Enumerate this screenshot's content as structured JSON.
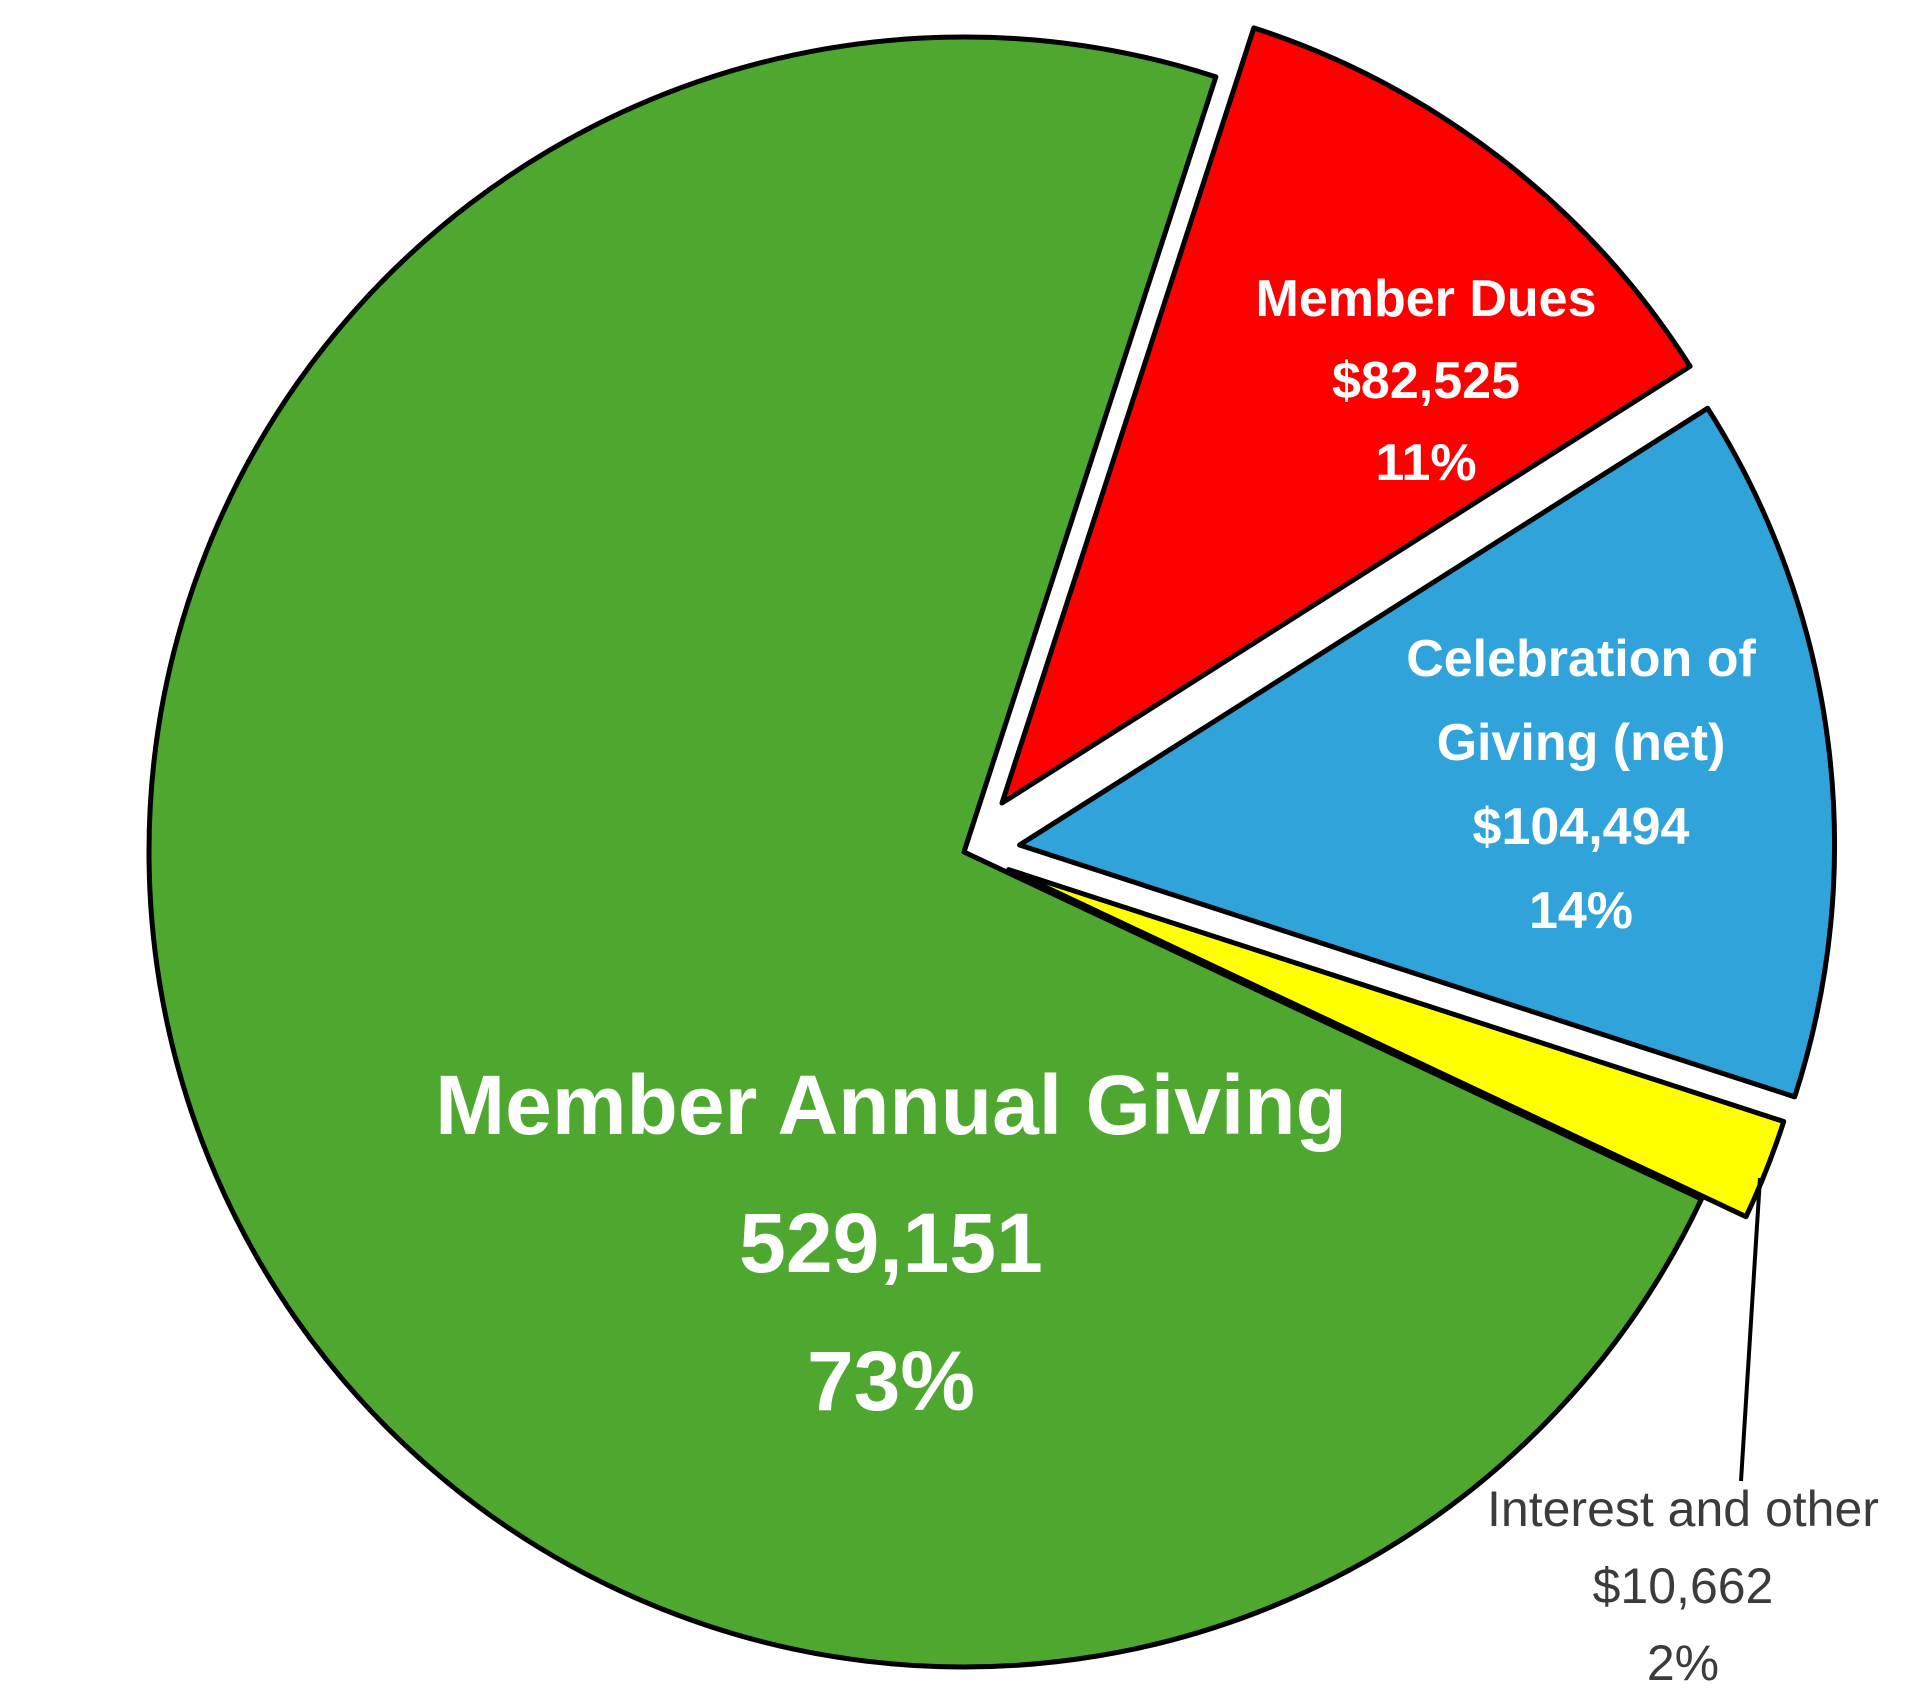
{
  "canvas": {
    "background": "#ffffff"
  },
  "chart_data": {
    "type": "pie",
    "title": "",
    "style": "exploded pie, black outlines, white background, no legend, labels inside slices except smallest slice which is labeled outside with a leader line",
    "categories": [
      "Member Dues",
      "Celebration of Giving (net)",
      "Interest and other",
      "Member Annual Giving"
    ],
    "values": [
      82525,
      104494,
      10662,
      529151
    ],
    "percents": [
      11,
      14,
      2,
      73
    ],
    "slices": [
      {
        "id": "member-dues",
        "label": "Member Dues",
        "value": 82525,
        "value_text": "$82,525",
        "percent": 11,
        "percent_text": "11%",
        "color": "#ff0000",
        "label_lines": [
          "Member Dues",
          "$82,525",
          "11%"
        ],
        "label_inside": true,
        "label_color": "#ffffff",
        "exploded": true
      },
      {
        "id": "celebration-of-giving-net",
        "label": "Celebration of Giving (net)",
        "value": 104494,
        "value_text": "$104,494",
        "percent": 14,
        "percent_text": "14%",
        "color": "#2fa3da",
        "label_lines": [
          "Celebration of",
          "Giving (net)",
          "$104,494",
          "14%"
        ],
        "label_inside": true,
        "label_color": "#ffffff",
        "exploded": true
      },
      {
        "id": "interest-and-other",
        "label": "Interest and other",
        "value": 10662,
        "value_text": "$10,662",
        "percent": 2,
        "percent_text": "2%",
        "color": "#ffff00",
        "label_lines": [
          "Interest and other",
          "$10,662",
          "2%"
        ],
        "label_inside": false,
        "label_color": "#3b3b3b",
        "leader_line": true,
        "exploded": true
      },
      {
        "id": "member-annual-giving",
        "label": "Member Annual Giving",
        "value": 529151,
        "value_text": "529,151",
        "percent": 73,
        "percent_text": "73%",
        "color": "#4ea72e",
        "label_lines": [
          "Member Annual Giving",
          "529,151",
          "73%"
        ],
        "label_inside": true,
        "label_color": "#ffffff",
        "exploded": false
      }
    ]
  }
}
